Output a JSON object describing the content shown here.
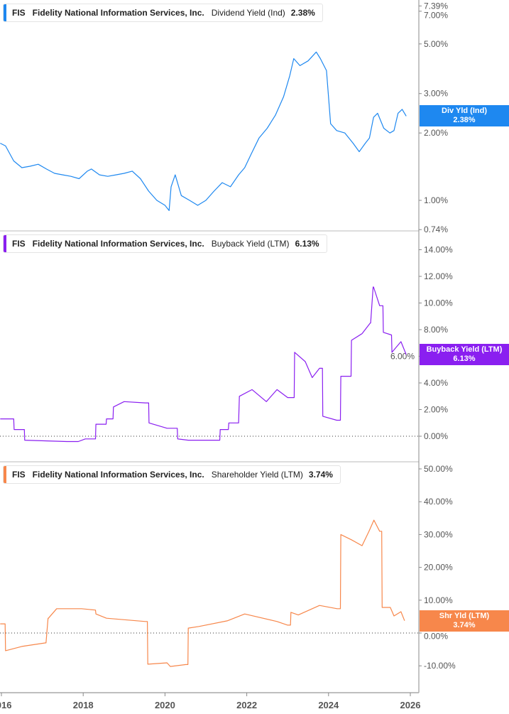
{
  "chart_data": [
    {
      "type": "line",
      "ticker": "FIS",
      "company": "Fidelity National Information Services, Inc.",
      "metric": "Dividend Yield (Ind)",
      "current": "2.38%",
      "badge_label": "Div Yld (Ind)",
      "badge_value": "2.38%",
      "color": "#1e88f0",
      "scale": "log",
      "ylim": [
        0.74,
        7.39
      ],
      "yticks": [
        7.39,
        7.0,
        5.0,
        3.0,
        2.0,
        1.0,
        0.74
      ],
      "ytick_labels": [
        "7.39%",
        "7.00%",
        "5.00%",
        "3.00%",
        "2.00%",
        "1.00%",
        "0.74%"
      ],
      "x": [
        2015.97,
        2016.1,
        2016.3,
        2016.5,
        2016.7,
        2016.9,
        2017.1,
        2017.3,
        2017.5,
        2017.7,
        2017.9,
        2018.1,
        2018.2,
        2018.4,
        2018.6,
        2018.8,
        2019.0,
        2019.2,
        2019.4,
        2019.6,
        2019.8,
        2020.0,
        2020.1,
        2020.15,
        2020.25,
        2020.4,
        2020.6,
        2020.8,
        2021.0,
        2021.2,
        2021.4,
        2021.6,
        2021.8,
        2021.95,
        2022.1,
        2022.3,
        2022.5,
        2022.7,
        2022.9,
        2023.05,
        2023.15,
        2023.3,
        2023.5,
        2023.7,
        2023.8,
        2023.95,
        2024.05,
        2024.2,
        2024.4,
        2024.6,
        2024.75,
        2024.9,
        2025.0,
        2025.1,
        2025.2,
        2025.35,
        2025.5,
        2025.6,
        2025.7,
        2025.8,
        2025.9
      ],
      "values": [
        1.8,
        1.75,
        1.5,
        1.4,
        1.42,
        1.45,
        1.38,
        1.32,
        1.3,
        1.28,
        1.25,
        1.35,
        1.38,
        1.3,
        1.28,
        1.3,
        1.32,
        1.35,
        1.25,
        1.1,
        1.0,
        0.95,
        0.9,
        1.15,
        1.3,
        1.05,
        1.0,
        0.95,
        1.0,
        1.1,
        1.2,
        1.15,
        1.3,
        1.4,
        1.6,
        1.9,
        2.1,
        2.4,
        2.9,
        3.6,
        4.3,
        4.0,
        4.2,
        4.6,
        4.3,
        3.8,
        2.2,
        2.05,
        2.0,
        1.8,
        1.65,
        1.8,
        1.9,
        2.35,
        2.45,
        2.1,
        2.0,
        2.05,
        2.45,
        2.55,
        2.38
      ]
    },
    {
      "type": "line",
      "ticker": "FIS",
      "company": "Fidelity National Information Services, Inc.",
      "metric": "Buyback Yield (LTM)",
      "current": "6.13%",
      "badge_label": "Buyback Yield (LTM)",
      "badge_value": "6.13%",
      "color": "#8a1ff0",
      "scale": "linear",
      "ylim": [
        -1.0,
        14.0
      ],
      "yticks": [
        14,
        12,
        10,
        8,
        6,
        4,
        2,
        0
      ],
      "ytick_labels": [
        "14.00%",
        "12.00%",
        "10.00%",
        "8.00%",
        "6.00%",
        "4.00%",
        "2.00%",
        "0.00%"
      ],
      "x": [
        2015.97,
        2016.3,
        2016.31,
        2016.56,
        2016.57,
        2017.6,
        2017.88,
        2018.05,
        2018.3,
        2018.31,
        2018.56,
        2018.57,
        2018.73,
        2018.74,
        2019.0,
        2019.52,
        2019.6,
        2019.61,
        2020.05,
        2020.3,
        2020.31,
        2020.57,
        2021.26,
        2021.34,
        2021.35,
        2021.55,
        2021.56,
        2021.8,
        2021.82,
        2022.13,
        2022.48,
        2022.74,
        2023.0,
        2023.16,
        2023.17,
        2023.43,
        2023.6,
        2023.78,
        2023.85,
        2023.86,
        2024.2,
        2024.29,
        2024.3,
        2024.55,
        2024.56,
        2024.82,
        2025.02,
        2025.03,
        2025.09,
        2025.1,
        2025.25,
        2025.33,
        2025.34,
        2025.54,
        2025.55,
        2025.77,
        2025.9
      ],
      "values": [
        1.3,
        1.3,
        0.5,
        0.5,
        -0.3,
        -0.4,
        -0.4,
        -0.2,
        -0.2,
        0.9,
        0.9,
        1.3,
        1.3,
        2.2,
        2.6,
        2.5,
        2.5,
        1.0,
        0.6,
        0.6,
        -0.2,
        -0.3,
        -0.3,
        -0.3,
        0.5,
        0.5,
        1.0,
        1.0,
        3.0,
        3.5,
        2.6,
        3.5,
        2.9,
        2.9,
        6.3,
        5.6,
        4.4,
        5.1,
        5.1,
        1.5,
        1.2,
        1.2,
        4.5,
        4.5,
        7.2,
        7.7,
        8.5,
        8.5,
        11.2,
        11.2,
        9.8,
        9.8,
        7.8,
        7.6,
        6.3,
        7.1,
        6.13
      ]
    },
    {
      "type": "line",
      "ticker": "FIS",
      "company": "Fidelity National Information Services, Inc.",
      "metric": "Shareholder Yield (LTM)",
      "current": "3.74%",
      "badge_label": "Shr Yld (LTM)",
      "badge_value": "3.74%",
      "color": "#f7874b",
      "scale": "linear",
      "ylim": [
        -15.0,
        55.0
      ],
      "yticks": [
        50,
        40,
        30,
        20,
        10,
        0,
        -10
      ],
      "ytick_labels": [
        "50.00%",
        "40.00%",
        "30.00%",
        "20.00%",
        "10.00%",
        "0.00%",
        "-10.00%"
      ],
      "x": [
        2015.97,
        2016.09,
        2016.1,
        2016.5,
        2017.08,
        2017.09,
        2017.14,
        2017.15,
        2017.35,
        2017.96,
        2018.3,
        2018.31,
        2018.57,
        2019.52,
        2019.57,
        2019.58,
        2020.05,
        2020.13,
        2020.51,
        2020.56,
        2020.57,
        2020.83,
        2021.52,
        2021.95,
        2022.74,
        2023.0,
        2023.07,
        2023.08,
        2023.26,
        2023.78,
        2024.21,
        2024.29,
        2024.3,
        2024.56,
        2024.82,
        2024.99,
        2025.11,
        2025.25,
        2025.3,
        2025.31,
        2025.51,
        2025.6,
        2025.77,
        2025.86
      ],
      "values": [
        2.8,
        2.8,
        -5.4,
        -4.1,
        -3.0,
        -3.0,
        4.5,
        4.5,
        7.4,
        7.4,
        7.0,
        5.8,
        4.5,
        3.5,
        3.5,
        -9.5,
        -9.1,
        -10.2,
        -9.6,
        -9.6,
        1.5,
        2.0,
        3.7,
        5.8,
        3.5,
        2.4,
        2.4,
        6.3,
        5.5,
        8.4,
        7.4,
        7.4,
        30.0,
        28.4,
        26.6,
        31.0,
        34.4,
        31.0,
        31.0,
        7.8,
        7.8,
        5.2,
        6.5,
        3.74
      ]
    }
  ],
  "x_axis": {
    "ticks": [
      2016,
      2018,
      2020,
      2022,
      2024,
      2026
    ],
    "tick_labels": [
      "2016",
      "2018",
      "2020",
      "2022",
      "2024",
      "2026"
    ],
    "range": [
      2015.97,
      2026.2
    ]
  },
  "zero_line_style": "dotted"
}
